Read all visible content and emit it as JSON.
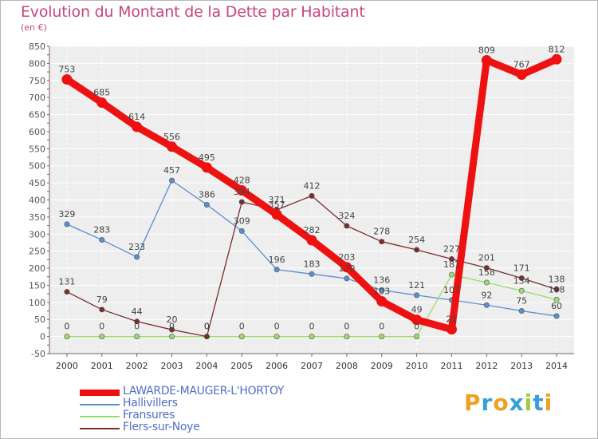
{
  "title": "Evolution du Montant de la Dette par Habitant",
  "subtitle": "(en €)",
  "logo": {
    "letters": [
      "P",
      "r",
      "o",
      "x",
      "i",
      "t",
      "i"
    ],
    "colors": [
      "#f0a020",
      "#38a0d8",
      "#f0a020",
      "#38a0d8",
      "#9ccc3c",
      "#38a0d8",
      "#f0a020"
    ]
  },
  "chart_data": {
    "type": "line",
    "title": "Evolution du Montant de la Dette par Habitant",
    "ylabel": "(en €)",
    "xlabel": "",
    "categories": [
      "2000",
      "2001",
      "2002",
      "2003",
      "2004",
      "2005",
      "2006",
      "2007",
      "2008",
      "2009",
      "2010",
      "2011",
      "2012",
      "2013",
      "2014"
    ],
    "ylim": [
      -50,
      850
    ],
    "yticks": [
      -50,
      0,
      50,
      100,
      150,
      200,
      250,
      300,
      350,
      400,
      450,
      500,
      550,
      600,
      650,
      700,
      750,
      800,
      850
    ],
    "grid": true,
    "legend_position": "bottom-left",
    "series": [
      {
        "name": "LAWARDE-MAUGER-L'HORTOY",
        "color": "#ee1111",
        "width": "thick",
        "values": [
          753,
          685,
          614,
          556,
          495,
          428,
          357,
          282,
          203,
          103,
          49,
          21,
          809,
          767,
          812
        ],
        "labels": [
          "753",
          "685",
          "614",
          "556",
          "495",
          "428",
          "357",
          "282",
          "203",
          "103",
          "49",
          "21",
          "809",
          "767",
          "812"
        ]
      },
      {
        "name": "Hallivillers",
        "color": "#5a8fd0",
        "width": "thin",
        "values": [
          329,
          283,
          233,
          457,
          386,
          309,
          196,
          183,
          170,
          136,
          121,
          107,
          92,
          75,
          60
        ],
        "labels": [
          "329",
          "283",
          "233",
          "457",
          "386",
          "309",
          "196",
          "183",
          "170",
          "136",
          "121",
          "107",
          "92",
          "75",
          "60"
        ]
      },
      {
        "name": "Fransures",
        "color": "#98dd6a",
        "width": "thin",
        "values": [
          0,
          0,
          0,
          0,
          0,
          0,
          0,
          0,
          0,
          0,
          0,
          181,
          158,
          134,
          108
        ],
        "labels": [
          "0",
          "0",
          "0",
          "0",
          "0",
          "0",
          "0",
          "0",
          "0",
          "0",
          "0",
          "181",
          "158",
          "134",
          "108"
        ]
      },
      {
        "name": "Flers-sur-Noye",
        "color": "#7a2d2d",
        "width": "thin",
        "values": [
          131,
          79,
          44,
          20,
          0,
          394,
          371,
          412,
          324,
          278,
          254,
          227,
          201,
          171,
          138
        ],
        "labels": [
          "131",
          "79",
          "44",
          "20",
          "0",
          "394",
          "371",
          "412",
          "324",
          "278",
          "254",
          "227",
          "201",
          "171",
          "138"
        ]
      }
    ]
  }
}
